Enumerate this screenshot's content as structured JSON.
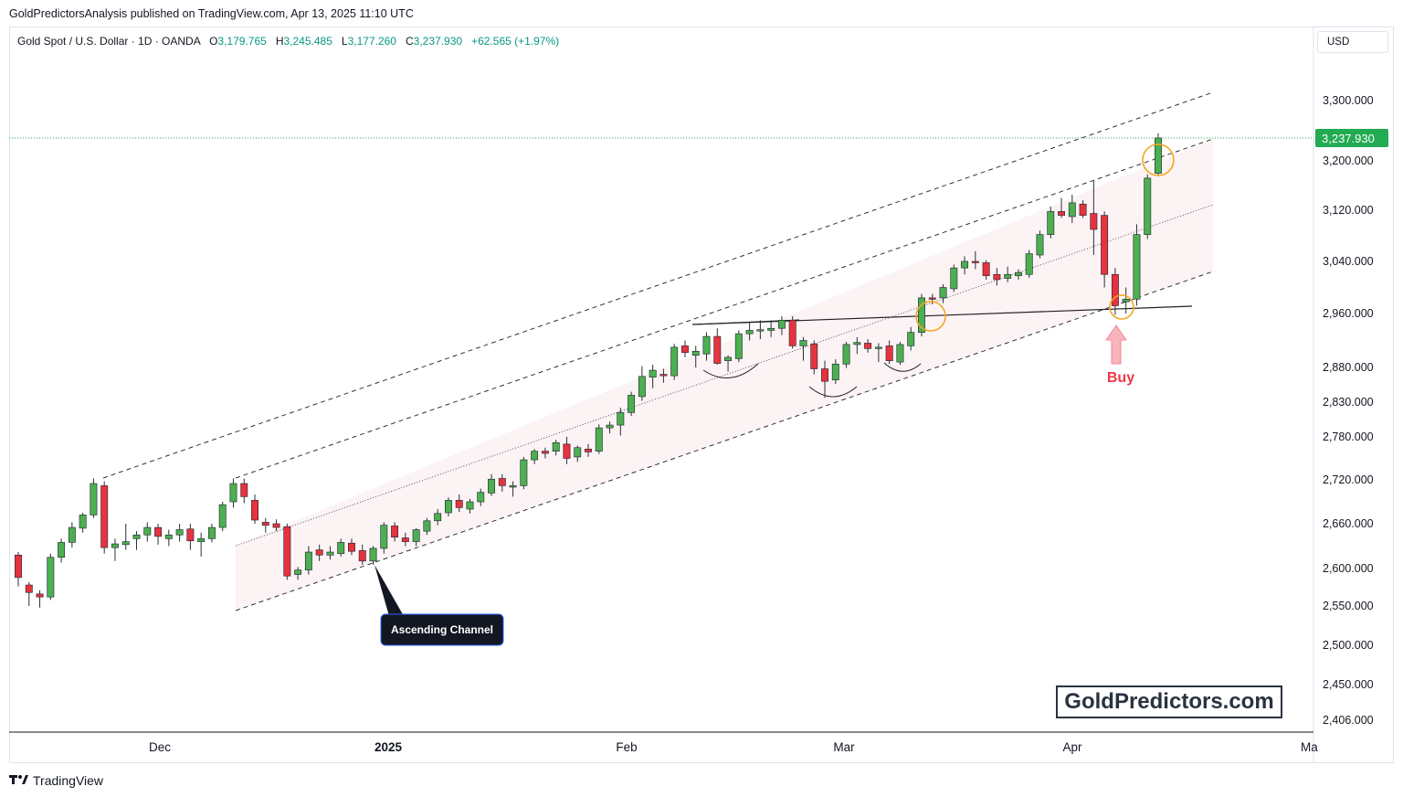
{
  "header": {
    "publisher_line": "GoldPredictorsAnalysis published on TradingView.com, Apr 13, 2025 11:10 UTC"
  },
  "legend": {
    "symbol": "Gold Spot / U.S. Dollar · 1D · OANDA",
    "o_label": "O",
    "o_value": "3,179.765",
    "h_label": "H",
    "h_value": "3,245.485",
    "l_label": "L",
    "l_value": "3,177.260",
    "c_label": "C",
    "c_value": "3,237.930",
    "change": "+62.565 (+1.97%)"
  },
  "currency": "USD",
  "watermark": "GoldPredictors.com",
  "footer": {
    "logo_text": "TradingView"
  },
  "colors": {
    "up": "#4caf50",
    "down": "#e5333f",
    "wick": "#2a2e39",
    "orange": "#f5a623",
    "buy": "#f23645",
    "price_tag": "#22ab52"
  },
  "chart_data": {
    "type": "candlestick",
    "y_ticks": [
      "3,300.000",
      "3,200.000",
      "3,120.000",
      "3,040.000",
      "2,960.000",
      "2,880.000",
      "2,830.000",
      "2,780.000",
      "2,720.000",
      "2,660.000",
      "2,600.000",
      "2,550.000",
      "2,500.000",
      "2,450.000",
      "2,406.000"
    ],
    "x_ticks": [
      "Dec",
      "2025",
      "Feb",
      "Mar",
      "Apr",
      "Ma"
    ],
    "last_price_label": "3,237.930",
    "annotations": {
      "channel_label": "Ascending Channel",
      "buy_label": "Buy"
    },
    "candles": [
      {
        "o": 2618,
        "h": 2622,
        "l": 2576,
        "c": 2588
      },
      {
        "o": 2578,
        "h": 2582,
        "l": 2550,
        "c": 2568
      },
      {
        "o": 2566,
        "h": 2571,
        "l": 2548,
        "c": 2562
      },
      {
        "o": 2562,
        "h": 2620,
        "l": 2558,
        "c": 2615
      },
      {
        "o": 2615,
        "h": 2640,
        "l": 2608,
        "c": 2635
      },
      {
        "o": 2635,
        "h": 2662,
        "l": 2628,
        "c": 2655
      },
      {
        "o": 2654,
        "h": 2675,
        "l": 2648,
        "c": 2672
      },
      {
        "o": 2672,
        "h": 2722,
        "l": 2668,
        "c": 2715
      },
      {
        "o": 2712,
        "h": 2718,
        "l": 2620,
        "c": 2628
      },
      {
        "o": 2628,
        "h": 2640,
        "l": 2610,
        "c": 2633
      },
      {
        "o": 2632,
        "h": 2660,
        "l": 2625,
        "c": 2636
      },
      {
        "o": 2640,
        "h": 2650,
        "l": 2625,
        "c": 2645
      },
      {
        "o": 2645,
        "h": 2662,
        "l": 2636,
        "c": 2655
      },
      {
        "o": 2655,
        "h": 2660,
        "l": 2632,
        "c": 2643
      },
      {
        "o": 2640,
        "h": 2652,
        "l": 2630,
        "c": 2645
      },
      {
        "o": 2645,
        "h": 2660,
        "l": 2636,
        "c": 2652
      },
      {
        "o": 2653,
        "h": 2660,
        "l": 2625,
        "c": 2637
      },
      {
        "o": 2636,
        "h": 2648,
        "l": 2616,
        "c": 2640
      },
      {
        "o": 2640,
        "h": 2660,
        "l": 2635,
        "c": 2655
      },
      {
        "o": 2655,
        "h": 2690,
        "l": 2650,
        "c": 2686
      },
      {
        "o": 2690,
        "h": 2722,
        "l": 2682,
        "c": 2715
      },
      {
        "o": 2715,
        "h": 2722,
        "l": 2688,
        "c": 2697
      },
      {
        "o": 2692,
        "h": 2700,
        "l": 2660,
        "c": 2665
      },
      {
        "o": 2662,
        "h": 2668,
        "l": 2648,
        "c": 2658
      },
      {
        "o": 2660,
        "h": 2666,
        "l": 2650,
        "c": 2655
      },
      {
        "o": 2656,
        "h": 2660,
        "l": 2585,
        "c": 2590
      },
      {
        "o": 2592,
        "h": 2602,
        "l": 2585,
        "c": 2598
      },
      {
        "o": 2598,
        "h": 2630,
        "l": 2592,
        "c": 2622
      },
      {
        "o": 2625,
        "h": 2632,
        "l": 2610,
        "c": 2618
      },
      {
        "o": 2618,
        "h": 2630,
        "l": 2612,
        "c": 2622
      },
      {
        "o": 2620,
        "h": 2640,
        "l": 2616,
        "c": 2635
      },
      {
        "o": 2634,
        "h": 2640,
        "l": 2618,
        "c": 2623
      },
      {
        "o": 2624,
        "h": 2632,
        "l": 2605,
        "c": 2610
      },
      {
        "o": 2610,
        "h": 2630,
        "l": 2605,
        "c": 2627
      },
      {
        "o": 2627,
        "h": 2662,
        "l": 2620,
        "c": 2658
      },
      {
        "o": 2657,
        "h": 2662,
        "l": 2636,
        "c": 2642
      },
      {
        "o": 2641,
        "h": 2648,
        "l": 2630,
        "c": 2636
      },
      {
        "o": 2636,
        "h": 2654,
        "l": 2630,
        "c": 2652
      },
      {
        "o": 2650,
        "h": 2668,
        "l": 2645,
        "c": 2664
      },
      {
        "o": 2664,
        "h": 2680,
        "l": 2658,
        "c": 2674
      },
      {
        "o": 2675,
        "h": 2696,
        "l": 2670,
        "c": 2692
      },
      {
        "o": 2692,
        "h": 2700,
        "l": 2676,
        "c": 2682
      },
      {
        "o": 2680,
        "h": 2694,
        "l": 2674,
        "c": 2690
      },
      {
        "o": 2690,
        "h": 2708,
        "l": 2684,
        "c": 2703
      },
      {
        "o": 2702,
        "h": 2728,
        "l": 2698,
        "c": 2721
      },
      {
        "o": 2722,
        "h": 2728,
        "l": 2704,
        "c": 2712
      },
      {
        "o": 2710,
        "h": 2718,
        "l": 2697,
        "c": 2712
      },
      {
        "o": 2712,
        "h": 2752,
        "l": 2707,
        "c": 2748
      },
      {
        "o": 2748,
        "h": 2763,
        "l": 2742,
        "c": 2760
      },
      {
        "o": 2760,
        "h": 2765,
        "l": 2750,
        "c": 2757
      },
      {
        "o": 2760,
        "h": 2776,
        "l": 2754,
        "c": 2772
      },
      {
        "o": 2770,
        "h": 2780,
        "l": 2742,
        "c": 2750
      },
      {
        "o": 2752,
        "h": 2768,
        "l": 2745,
        "c": 2765
      },
      {
        "o": 2763,
        "h": 2770,
        "l": 2752,
        "c": 2759
      },
      {
        "o": 2760,
        "h": 2798,
        "l": 2756,
        "c": 2793
      },
      {
        "o": 2793,
        "h": 2802,
        "l": 2785,
        "c": 2797
      },
      {
        "o": 2797,
        "h": 2822,
        "l": 2782,
        "c": 2815
      },
      {
        "o": 2815,
        "h": 2845,
        "l": 2810,
        "c": 2840
      },
      {
        "o": 2838,
        "h": 2882,
        "l": 2832,
        "c": 2867
      },
      {
        "o": 2866,
        "h": 2884,
        "l": 2850,
        "c": 2876
      },
      {
        "o": 2870,
        "h": 2878,
        "l": 2858,
        "c": 2868
      },
      {
        "o": 2868,
        "h": 2915,
        "l": 2862,
        "c": 2910
      },
      {
        "o": 2912,
        "h": 2920,
        "l": 2895,
        "c": 2902
      },
      {
        "o": 2898,
        "h": 2912,
        "l": 2880,
        "c": 2904
      },
      {
        "o": 2900,
        "h": 2932,
        "l": 2890,
        "c": 2926
      },
      {
        "o": 2926,
        "h": 2938,
        "l": 2884,
        "c": 2886
      },
      {
        "o": 2890,
        "h": 2898,
        "l": 2874,
        "c": 2895
      },
      {
        "o": 2893,
        "h": 2935,
        "l": 2888,
        "c": 2930
      },
      {
        "o": 2930,
        "h": 2946,
        "l": 2920,
        "c": 2935
      },
      {
        "o": 2934,
        "h": 2950,
        "l": 2922,
        "c": 2936
      },
      {
        "o": 2935,
        "h": 2950,
        "l": 2925,
        "c": 2938
      },
      {
        "o": 2938,
        "h": 2956,
        "l": 2928,
        "c": 2950
      },
      {
        "o": 2950,
        "h": 2956,
        "l": 2908,
        "c": 2912
      },
      {
        "o": 2912,
        "h": 2925,
        "l": 2890,
        "c": 2920
      },
      {
        "o": 2915,
        "h": 2920,
        "l": 2870,
        "c": 2878
      },
      {
        "o": 2878,
        "h": 2890,
        "l": 2836,
        "c": 2860
      },
      {
        "o": 2862,
        "h": 2892,
        "l": 2856,
        "c": 2885
      },
      {
        "o": 2885,
        "h": 2918,
        "l": 2879,
        "c": 2914
      },
      {
        "o": 2914,
        "h": 2925,
        "l": 2900,
        "c": 2917
      },
      {
        "o": 2916,
        "h": 2922,
        "l": 2902,
        "c": 2908
      },
      {
        "o": 2908,
        "h": 2916,
        "l": 2888,
        "c": 2910
      },
      {
        "o": 2912,
        "h": 2920,
        "l": 2885,
        "c": 2890
      },
      {
        "o": 2888,
        "h": 2918,
        "l": 2884,
        "c": 2914
      },
      {
        "o": 2912,
        "h": 2940,
        "l": 2905,
        "c": 2932
      },
      {
        "o": 2932,
        "h": 2990,
        "l": 2926,
        "c": 2984
      },
      {
        "o": 2984,
        "h": 2990,
        "l": 2974,
        "c": 2982
      },
      {
        "o": 2984,
        "h": 3005,
        "l": 2976,
        "c": 3000
      },
      {
        "o": 2998,
        "h": 3035,
        "l": 2993,
        "c": 3030
      },
      {
        "o": 3030,
        "h": 3048,
        "l": 3020,
        "c": 3040
      },
      {
        "o": 3040,
        "h": 3056,
        "l": 3028,
        "c": 3038
      },
      {
        "o": 3038,
        "h": 3042,
        "l": 3012,
        "c": 3018
      },
      {
        "o": 3020,
        "h": 3030,
        "l": 3003,
        "c": 3012
      },
      {
        "o": 3014,
        "h": 3032,
        "l": 3008,
        "c": 3020
      },
      {
        "o": 3018,
        "h": 3028,
        "l": 3012,
        "c": 3023
      },
      {
        "o": 3020,
        "h": 3058,
        "l": 3015,
        "c": 3052
      },
      {
        "o": 3050,
        "h": 3088,
        "l": 3045,
        "c": 3082
      },
      {
        "o": 3082,
        "h": 3126,
        "l": 3076,
        "c": 3118
      },
      {
        "o": 3118,
        "h": 3140,
        "l": 3108,
        "c": 3112
      },
      {
        "o": 3110,
        "h": 3145,
        "l": 3100,
        "c": 3132
      },
      {
        "o": 3130,
        "h": 3136,
        "l": 3108,
        "c": 3112
      },
      {
        "o": 3115,
        "h": 3168,
        "l": 3050,
        "c": 3090
      },
      {
        "o": 3112,
        "h": 3118,
        "l": 3000,
        "c": 3020
      },
      {
        "o": 3020,
        "h": 3030,
        "l": 2958,
        "c": 2972
      },
      {
        "o": 2978,
        "h": 3000,
        "l": 2960,
        "c": 2982
      },
      {
        "o": 2982,
        "h": 3098,
        "l": 2972,
        "c": 3082
      },
      {
        "o": 3082,
        "h": 3178,
        "l": 3075,
        "c": 3172
      },
      {
        "o": 3179.765,
        "h": 3245.485,
        "l": 3177.26,
        "c": 3237.93
      }
    ]
  }
}
